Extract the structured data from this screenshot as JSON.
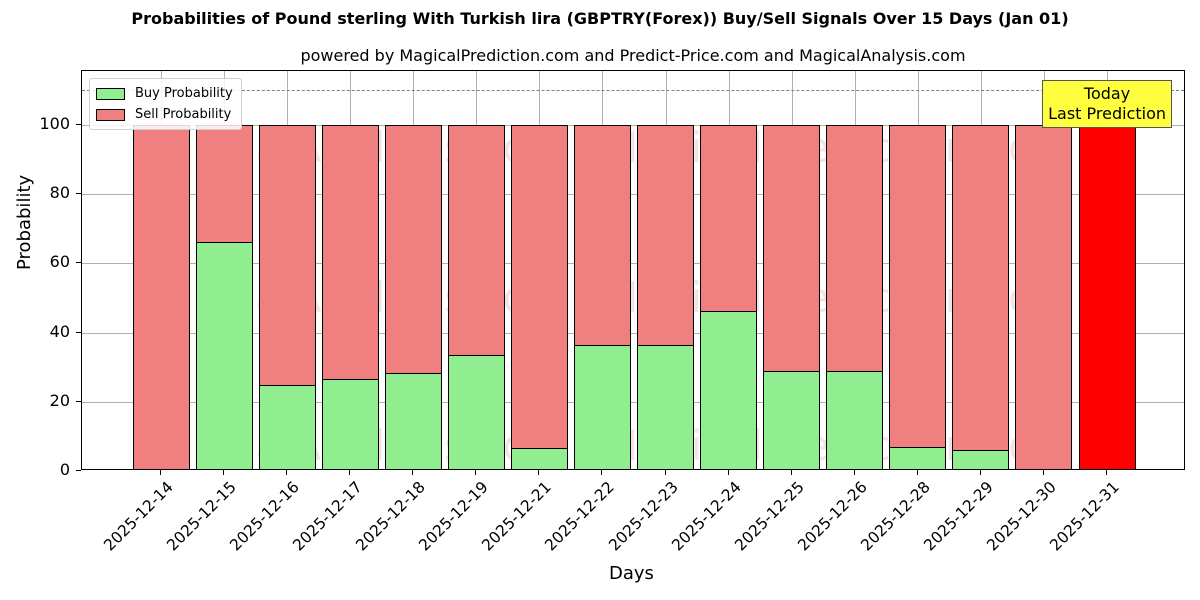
{
  "title": "Probabilities of Pound sterling With Turkish lira (GBPTRY(Forex)) Buy/Sell Signals Over 15 Days (Jan 01)",
  "subtitle": "powered by MagicalPrediction.com and Predict-Price.com and MagicalAnalysis.com",
  "legend": {
    "buy": "Buy Probability",
    "sell": "Sell Probability"
  },
  "annotation": {
    "line1": "Today",
    "line2": "Last Prediction"
  },
  "watermarks": [
    "MagicalAnalysis.com",
    "MagicalPrediction.com"
  ],
  "colors": {
    "buy": "#90ee90",
    "sell": "#f08080",
    "today": "#ff0000",
    "annotation_bg": "#ffff40"
  },
  "chart_data": {
    "type": "bar",
    "stacked": true,
    "title": "Probabilities of Pound sterling With Turkish lira (GBPTRY(Forex)) Buy/Sell Signals Over 15 Days (Jan 01)",
    "subtitle": "powered by MagicalPrediction.com and Predict-Price.com and MagicalAnalysis.com",
    "xlabel": "Days",
    "ylabel": "Probability",
    "ylim": [
      0,
      115
    ],
    "yticks": [
      0,
      20,
      40,
      60,
      80,
      100
    ],
    "reference_line": {
      "y": 110,
      "style": "dashed",
      "color": "#808080"
    },
    "grid": true,
    "legend_position": "upper left",
    "categories": [
      "2025-12-14",
      "2025-12-15",
      "2025-12-16",
      "2025-12-17",
      "2025-12-18",
      "2025-12-19",
      "2025-12-21",
      "2025-12-22",
      "2025-12-23",
      "2025-12-24",
      "2025-12-25",
      "2025-12-26",
      "2025-12-28",
      "2025-12-29",
      "2025-12-30",
      "2025-12-31"
    ],
    "series": [
      {
        "name": "Buy Probability",
        "values": [
          0,
          66.3,
          24.8,
          26.5,
          28.2,
          33.4,
          6.6,
          36.3,
          36.3,
          46.3,
          28.8,
          28.8,
          6.8,
          6.2,
          0,
          0
        ]
      },
      {
        "name": "Sell Probability",
        "values": [
          100,
          33.7,
          75.2,
          73.5,
          71.8,
          66.6,
          93.4,
          63.7,
          63.7,
          53.7,
          71.2,
          71.2,
          93.2,
          93.8,
          100,
          100
        ]
      }
    ],
    "highlight": {
      "category": "2025-12-31",
      "label": "Today\nLast Prediction",
      "color": "#ff0000"
    }
  }
}
